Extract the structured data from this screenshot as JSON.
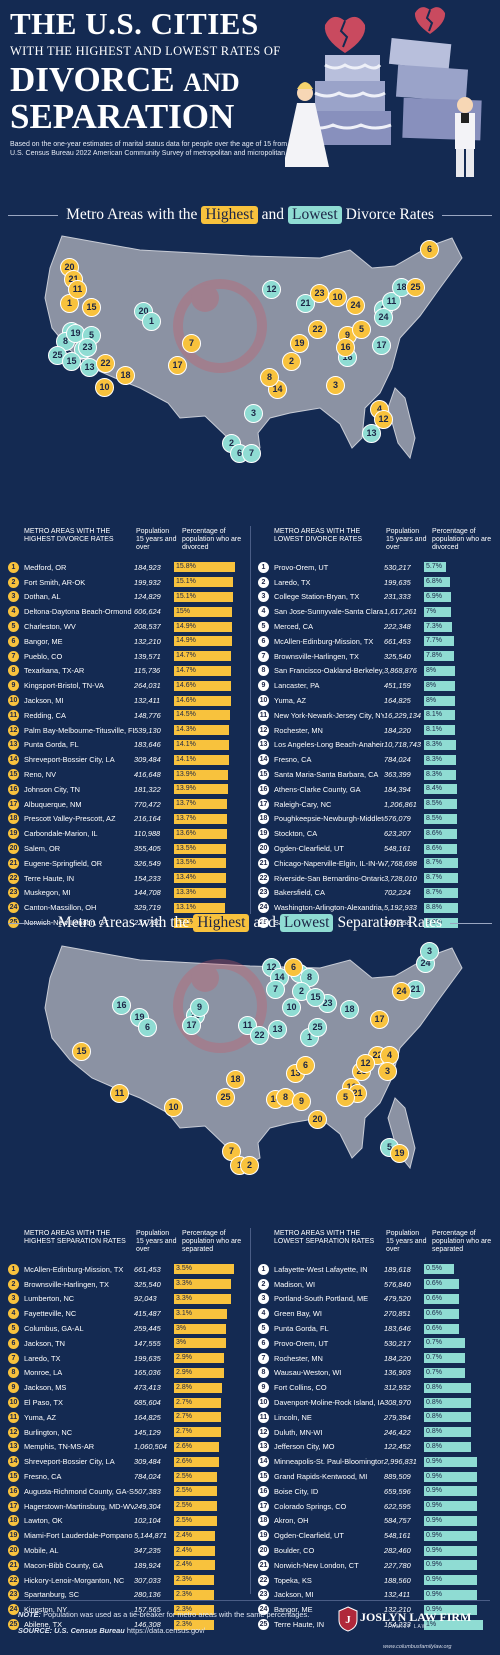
{
  "header": {
    "line1": "THE U.S. CITIES",
    "line2": "WITH THE HIGHEST AND LOWEST RATES OF",
    "line3": "DIVORCE",
    "line3b": "AND",
    "line4": "SEPARATION",
    "intro": "Based on the one-year estimates of marital status data for people over the age of 15 from the U.S. Census Bureau 2022 American Community Survey of metropolitan and micropolitan areas."
  },
  "divorce": {
    "title_pre": "Metro Areas with the",
    "title_high": "Highest",
    "title_and": "and",
    "title_low": "Lowest",
    "title_post": "Divorce Rates",
    "high_header": "METRO AREAS WITH THE HIGHEST DIVORCE RATES",
    "low_header": "METRO AREAS WITH THE LOWEST DIVORCE RATES",
    "pop_header": "Population 15 years and over",
    "pct_header": "Percentage of population who are divorced",
    "high": [
      {
        "rank": "1",
        "name": "Medford, OR",
        "pop": "184,923",
        "pct": "15.8%",
        "v": 15.8
      },
      {
        "rank": "2",
        "name": "Fort Smith, AR-OK",
        "pop": "199,932",
        "pct": "15.1%",
        "v": 15.1
      },
      {
        "rank": "3",
        "name": "Dothan, AL",
        "pop": "124,829",
        "pct": "15.1%",
        "v": 15.1
      },
      {
        "rank": "4",
        "name": "Deltona-Daytona Beach-Ormond Beach, FL",
        "pop": "606,624",
        "pct": "15%",
        "v": 15.0
      },
      {
        "rank": "5",
        "name": "Charleston, WV",
        "pop": "208,537",
        "pct": "14.9%",
        "v": 14.9
      },
      {
        "rank": "6",
        "name": "Bangor, ME",
        "pop": "132,210",
        "pct": "14.9%",
        "v": 14.9
      },
      {
        "rank": "7",
        "name": "Pueblo, CO",
        "pop": "139,571",
        "pct": "14.7%",
        "v": 14.7
      },
      {
        "rank": "8",
        "name": "Texarkana, TX-AR",
        "pop": "115,736",
        "pct": "14.7%",
        "v": 14.7
      },
      {
        "rank": "9",
        "name": "Kingsport-Bristol, TN-VA",
        "pop": "264,031",
        "pct": "14.6%",
        "v": 14.6
      },
      {
        "rank": "10",
        "name": "Jackson, MI",
        "pop": "132,411",
        "pct": "14.6%",
        "v": 14.6
      },
      {
        "rank": "11",
        "name": "Redding, CA",
        "pop": "148,776",
        "pct": "14.5%",
        "v": 14.5
      },
      {
        "rank": "12",
        "name": "Palm Bay-Melbourne-Titusville, FL",
        "pop": "539,130",
        "pct": "14.3%",
        "v": 14.3
      },
      {
        "rank": "13",
        "name": "Punta Gorda, FL",
        "pop": "183,646",
        "pct": "14.1%",
        "v": 14.1
      },
      {
        "rank": "14",
        "name": "Shreveport-Bossier City, LA",
        "pop": "309,484",
        "pct": "14.1%",
        "v": 14.1
      },
      {
        "rank": "15",
        "name": "Reno, NV",
        "pop": "416,648",
        "pct": "13.9%",
        "v": 13.9
      },
      {
        "rank": "16",
        "name": "Johnson City, TN",
        "pop": "181,322",
        "pct": "13.9%",
        "v": 13.9
      },
      {
        "rank": "17",
        "name": "Albuquerque, NM",
        "pop": "770,472",
        "pct": "13.7%",
        "v": 13.7
      },
      {
        "rank": "18",
        "name": "Prescott Valley-Prescott, AZ",
        "pop": "216,164",
        "pct": "13.7%",
        "v": 13.7
      },
      {
        "rank": "19",
        "name": "Carbondale-Marion, IL",
        "pop": "110,988",
        "pct": "13.6%",
        "v": 13.6
      },
      {
        "rank": "20",
        "name": "Salem, OR",
        "pop": "355,405",
        "pct": "13.5%",
        "v": 13.5
      },
      {
        "rank": "21",
        "name": "Eugene-Springfield, OR",
        "pop": "326,549",
        "pct": "13.5%",
        "v": 13.5
      },
      {
        "rank": "22",
        "name": "Terre Haute, IN",
        "pop": "154,233",
        "pct": "13.4%",
        "v": 13.4
      },
      {
        "rank": "23",
        "name": "Muskegon, MI",
        "pop": "144,708",
        "pct": "13.3%",
        "v": 13.3
      },
      {
        "rank": "24",
        "name": "Canton-Massillon, OH",
        "pop": "329,719",
        "pct": "13.1%",
        "v": 13.1
      },
      {
        "rank": "25",
        "name": "Norwich-New London, CT",
        "pop": "227,780",
        "pct": "13.1%",
        "v": 13.1
      }
    ],
    "low": [
      {
        "rank": "1",
        "name": "Provo-Orem, UT",
        "pop": "530,217",
        "pct": "5.7%",
        "v": 5.7
      },
      {
        "rank": "2",
        "name": "Laredo, TX",
        "pop": "199,635",
        "pct": "6.8%",
        "v": 6.8
      },
      {
        "rank": "3",
        "name": "College Station-Bryan, TX",
        "pop": "231,333",
        "pct": "6.9%",
        "v": 6.9
      },
      {
        "rank": "4",
        "name": "San Jose-Sunnyvale-Santa Clara, CA",
        "pop": "1,617,261",
        "pct": "7%",
        "v": 7.0
      },
      {
        "rank": "5",
        "name": "Merced, CA",
        "pop": "222,348",
        "pct": "7.3%",
        "v": 7.3
      },
      {
        "rank": "6",
        "name": "McAllen-Edinburg-Mission, TX",
        "pop": "661,453",
        "pct": "7.7%",
        "v": 7.7
      },
      {
        "rank": "7",
        "name": "Brownsville-Harlingen, TX",
        "pop": "325,540",
        "pct": "7.8%",
        "v": 7.8
      },
      {
        "rank": "8",
        "name": "San Francisco-Oakland-Berkeley, CA",
        "pop": "3,868,876",
        "pct": "8%",
        "v": 8.0
      },
      {
        "rank": "9",
        "name": "Lancaster, PA",
        "pop": "451,159",
        "pct": "8%",
        "v": 8.0
      },
      {
        "rank": "10",
        "name": "Yuma, AZ",
        "pop": "164,825",
        "pct": "8%",
        "v": 8.0
      },
      {
        "rank": "11",
        "name": "New York-Newark-Jersey City, NY-NJ-PA",
        "pop": "16,229,134",
        "pct": "8.1%",
        "v": 8.1
      },
      {
        "rank": "12",
        "name": "Rochester, MN",
        "pop": "184,220",
        "pct": "8.1%",
        "v": 8.1
      },
      {
        "rank": "13",
        "name": "Los Angeles-Long Beach-Anaheim, CA",
        "pop": "10,718,743",
        "pct": "8.3%",
        "v": 8.3
      },
      {
        "rank": "14",
        "name": "Fresno, CA",
        "pop": "784,024",
        "pct": "8.3%",
        "v": 8.3
      },
      {
        "rank": "15",
        "name": "Santa Maria-Santa Barbara, CA",
        "pop": "363,399",
        "pct": "8.3%",
        "v": 8.3
      },
      {
        "rank": "16",
        "name": "Athens-Clarke County, GA",
        "pop": "184,394",
        "pct": "8.4%",
        "v": 8.4
      },
      {
        "rank": "17",
        "name": "Raleigh-Cary, NC",
        "pop": "1,206,861",
        "pct": "8.5%",
        "v": 8.5
      },
      {
        "rank": "18",
        "name": "Poughkeepsie-Newburgh-Middletown, NY",
        "pop": "576,079",
        "pct": "8.5%",
        "v": 8.5
      },
      {
        "rank": "19",
        "name": "Stockton, CA",
        "pop": "623,207",
        "pct": "8.6%",
        "v": 8.6
      },
      {
        "rank": "20",
        "name": "Ogden-Clearfield, UT",
        "pop": "548,161",
        "pct": "8.6%",
        "v": 8.6
      },
      {
        "rank": "21",
        "name": "Chicago-Naperville-Elgin, IL-IN-WI",
        "pop": "7,768,698",
        "pct": "8.7%",
        "v": 8.7
      },
      {
        "rank": "22",
        "name": "Riverside-San Bernardino-Ontario, CA",
        "pop": "3,728,010",
        "pct": "8.7%",
        "v": 8.7
      },
      {
        "rank": "23",
        "name": "Bakersfield, CA",
        "pop": "702,224",
        "pct": "8.7%",
        "v": 8.7
      },
      {
        "rank": "24",
        "name": "Washington-Arlington-Alexandria, DC-VA-MD-WV",
        "pop": "5,192,933",
        "pct": "8.8%",
        "v": 8.8
      },
      {
        "rank": "25",
        "name": "Salinas, CA",
        "pop": "342,358",
        "pct": "8.9%",
        "v": 8.9
      }
    ]
  },
  "separation": {
    "title_pre": "Metro Areas with the",
    "title_high": "Highest",
    "title_and": "and",
    "title_low": "Lowest",
    "title_post": "Separation Rates",
    "high_header": "METRO AREAS WITH THE HIGHEST SEPARATION RATES",
    "low_header": "METRO AREAS WITH THE LOWEST SEPARATION RATES",
    "pop_header": "Population 15 years and over",
    "pct_header": "Percentage of population who are separated",
    "high": [
      {
        "rank": "1",
        "name": "McAllen-Edinburg-Mission, TX",
        "pop": "661,453",
        "pct": "3.5%",
        "v": 3.5
      },
      {
        "rank": "2",
        "name": "Brownsville-Harlingen, TX",
        "pop": "325,540",
        "pct": "3.3%",
        "v": 3.3
      },
      {
        "rank": "3",
        "name": "Lumberton, NC",
        "pop": "92,043",
        "pct": "3.3%",
        "v": 3.3
      },
      {
        "rank": "4",
        "name": "Fayetteville, NC",
        "pop": "415,487",
        "pct": "3.1%",
        "v": 3.1
      },
      {
        "rank": "5",
        "name": "Columbus, GA-AL",
        "pop": "259,445",
        "pct": "3%",
        "v": 3.0
      },
      {
        "rank": "6",
        "name": "Jackson, TN",
        "pop": "147,555",
        "pct": "3%",
        "v": 3.0
      },
      {
        "rank": "7",
        "name": "Laredo, TX",
        "pop": "199,635",
        "pct": "2.9%",
        "v": 2.9
      },
      {
        "rank": "8",
        "name": "Monroe, LA",
        "pop": "165,036",
        "pct": "2.9%",
        "v": 2.9
      },
      {
        "rank": "9",
        "name": "Jackson, MS",
        "pop": "473,413",
        "pct": "2.8%",
        "v": 2.8
      },
      {
        "rank": "10",
        "name": "El Paso, TX",
        "pop": "685,604",
        "pct": "2.7%",
        "v": 2.7
      },
      {
        "rank": "11",
        "name": "Yuma, AZ",
        "pop": "164,825",
        "pct": "2.7%",
        "v": 2.7
      },
      {
        "rank": "12",
        "name": "Burlington, NC",
        "pop": "145,129",
        "pct": "2.7%",
        "v": 2.7
      },
      {
        "rank": "13",
        "name": "Memphis, TN-MS-AR",
        "pop": "1,060,504",
        "pct": "2.6%",
        "v": 2.6
      },
      {
        "rank": "14",
        "name": "Shreveport-Bossier City, LA",
        "pop": "309,484",
        "pct": "2.6%",
        "v": 2.6
      },
      {
        "rank": "15",
        "name": "Fresno, CA",
        "pop": "784,024",
        "pct": "2.5%",
        "v": 2.5
      },
      {
        "rank": "16",
        "name": "Augusta-Richmond County, GA-SC",
        "pop": "507,383",
        "pct": "2.5%",
        "v": 2.5
      },
      {
        "rank": "17",
        "name": "Hagerstown-Martinsburg, MD-WV",
        "pop": "249,304",
        "pct": "2.5%",
        "v": 2.5
      },
      {
        "rank": "18",
        "name": "Lawton, OK",
        "pop": "102,104",
        "pct": "2.5%",
        "v": 2.5
      },
      {
        "rank": "19",
        "name": "Miami-Fort Lauderdale-Pompano Beach, FL",
        "pop": "5,144,871",
        "pct": "2.4%",
        "v": 2.4
      },
      {
        "rank": "20",
        "name": "Mobile, AL",
        "pop": "347,235",
        "pct": "2.4%",
        "v": 2.4
      },
      {
        "rank": "21",
        "name": "Macon-Bibb County, GA",
        "pop": "189,924",
        "pct": "2.4%",
        "v": 2.4
      },
      {
        "rank": "22",
        "name": "Hickory-Lenoir-Morganton, NC",
        "pop": "307,033",
        "pct": "2.3%",
        "v": 2.3
      },
      {
        "rank": "23",
        "name": "Spartanburg, SC",
        "pop": "280,136",
        "pct": "2.3%",
        "v": 2.3
      },
      {
        "rank": "24",
        "name": "Kingston, NY",
        "pop": "157,565",
        "pct": "2.3%",
        "v": 2.3
      },
      {
        "rank": "25",
        "name": "Abilene, TX",
        "pop": "146,308",
        "pct": "2.3%",
        "v": 2.3
      }
    ],
    "low": [
      {
        "rank": "1",
        "name": "Lafayette-West Lafayette, IN",
        "pop": "189,618",
        "pct": "0.5%",
        "v": 0.5
      },
      {
        "rank": "2",
        "name": "Madison, WI",
        "pop": "576,840",
        "pct": "0.6%",
        "v": 0.6
      },
      {
        "rank": "3",
        "name": "Portland-South Portland, ME",
        "pop": "479,520",
        "pct": "0.6%",
        "v": 0.6
      },
      {
        "rank": "4",
        "name": "Green Bay, WI",
        "pop": "270,851",
        "pct": "0.6%",
        "v": 0.6
      },
      {
        "rank": "5",
        "name": "Punta Gorda, FL",
        "pop": "183,646",
        "pct": "0.6%",
        "v": 0.6
      },
      {
        "rank": "6",
        "name": "Provo-Orem, UT",
        "pop": "530,217",
        "pct": "0.7%",
        "v": 0.7
      },
      {
        "rank": "7",
        "name": "Rochester, MN",
        "pop": "184,220",
        "pct": "0.7%",
        "v": 0.7
      },
      {
        "rank": "8",
        "name": "Wausau-Weston, WI",
        "pop": "136,903",
        "pct": "0.7%",
        "v": 0.7
      },
      {
        "rank": "9",
        "name": "Fort Collins, CO",
        "pop": "312,932",
        "pct": "0.8%",
        "v": 0.8
      },
      {
        "rank": "10",
        "name": "Davenport-Moline-Rock Island, IA-IL",
        "pop": "308,970",
        "pct": "0.8%",
        "v": 0.8
      },
      {
        "rank": "11",
        "name": "Lincoln, NE",
        "pop": "279,394",
        "pct": "0.8%",
        "v": 0.8
      },
      {
        "rank": "12",
        "name": "Duluth, MN-WI",
        "pop": "246,422",
        "pct": "0.8%",
        "v": 0.8
      },
      {
        "rank": "13",
        "name": "Jefferson City, MO",
        "pop": "122,452",
        "pct": "0.8%",
        "v": 0.8
      },
      {
        "rank": "14",
        "name": "Minneapolis-St. Paul-Bloomington, MN-WI",
        "pop": "2,996,831",
        "pct": "0.9%",
        "v": 0.9
      },
      {
        "rank": "15",
        "name": "Grand Rapids-Kentwood, MI",
        "pop": "889,509",
        "pct": "0.9%",
        "v": 0.9
      },
      {
        "rank": "16",
        "name": "Boise City, ID",
        "pop": "659,596",
        "pct": "0.9%",
        "v": 0.9
      },
      {
        "rank": "17",
        "name": "Colorado Springs, CO",
        "pop": "622,595",
        "pct": "0.9%",
        "v": 0.9
      },
      {
        "rank": "18",
        "name": "Akron, OH",
        "pop": "584,757",
        "pct": "0.9%",
        "v": 0.9
      },
      {
        "rank": "19",
        "name": "Ogden-Clearfield, UT",
        "pop": "548,161",
        "pct": "0.9%",
        "v": 0.9
      },
      {
        "rank": "20",
        "name": "Boulder, CO",
        "pop": "282,460",
        "pct": "0.9%",
        "v": 0.9
      },
      {
        "rank": "21",
        "name": "Norwich-New London, CT",
        "pop": "227,780",
        "pct": "0.9%",
        "v": 0.9
      },
      {
        "rank": "22",
        "name": "Topeka, KS",
        "pop": "188,560",
        "pct": "0.9%",
        "v": 0.9
      },
      {
        "rank": "23",
        "name": "Jackson, MI",
        "pop": "132,411",
        "pct": "0.9%",
        "v": 0.9
      },
      {
        "rank": "24",
        "name": "Bangor, ME",
        "pop": "132,210",
        "pct": "0.9%",
        "v": 0.9
      },
      {
        "rank": "25",
        "name": "Terre Haute, IN",
        "pop": "154,233",
        "pct": "1%",
        "v": 1.0
      }
    ]
  },
  "footer": {
    "note_label": "NOTE:",
    "note": "Population was used as a tie-breaker for metro areas with the same percentages.",
    "source_label": "SOURCE:",
    "source_name": "U.S. Census Bureau",
    "source_url": "https://data.census.gov/",
    "logo_name": "JOSLYN LAW FIRM",
    "logo_sub": "FAMILY LAW",
    "website": "www.columbusfamilylaw.org"
  },
  "colors": {
    "background": "#142a52",
    "highest": "#f8c23d",
    "lowest": "#8fdcd3",
    "map_land": "#8b92a3"
  },
  "icons": [
    "broken-heart-icon",
    "wedding-cake-icon",
    "bride-icon",
    "groom-icon",
    "broken-ring-watermark-icon",
    "map-pin-icon",
    "law-firm-logo-icon"
  ]
}
